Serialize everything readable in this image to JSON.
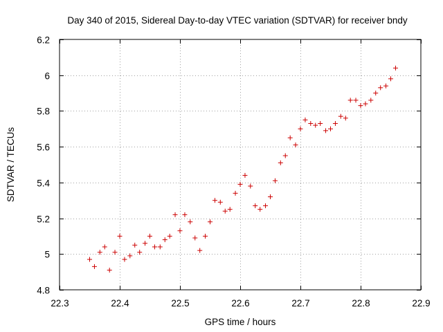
{
  "chart_data": {
    "type": "scatter",
    "title": "Day 340 of 2015, Sidereal Day-to-day VTEC variation (SDTVAR) for receiver bndy",
    "xlabel": "GPS time / hours",
    "ylabel": "SDTVAR / TECUs",
    "xlim": [
      22.3,
      22.9
    ],
    "ylim": [
      4.8,
      6.2
    ],
    "xticks": [
      "22.3",
      "22.4",
      "22.5",
      "22.6",
      "22.7",
      "22.8",
      "22.9"
    ],
    "yticks": [
      "4.8",
      "5",
      "5.2",
      "5.4",
      "5.6",
      "5.8",
      "6",
      "6.2"
    ],
    "grid": true,
    "marker": "+",
    "color": "#cc0000",
    "series": [
      {
        "name": "SDTVAR",
        "x": [
          22.35,
          22.358,
          22.367,
          22.375,
          22.383,
          22.392,
          22.4,
          22.408,
          22.417,
          22.425,
          22.433,
          22.442,
          22.45,
          22.458,
          22.467,
          22.475,
          22.483,
          22.492,
          22.5,
          22.508,
          22.517,
          22.525,
          22.533,
          22.542,
          22.55,
          22.558,
          22.567,
          22.575,
          22.583,
          22.592,
          22.6,
          22.608,
          22.617,
          22.625,
          22.633,
          22.642,
          22.65,
          22.658,
          22.667,
          22.675,
          22.683,
          22.692,
          22.7,
          22.708,
          22.717,
          22.725,
          22.733,
          22.742,
          22.75,
          22.758,
          22.767,
          22.775,
          22.783,
          22.792,
          22.8,
          22.808,
          22.817,
          22.825,
          22.833,
          22.842,
          22.85,
          22.858
        ],
        "y": [
          4.97,
          4.93,
          5.01,
          5.04,
          4.91,
          5.01,
          5.1,
          4.97,
          4.99,
          5.05,
          5.01,
          5.06,
          5.1,
          5.04,
          5.04,
          5.08,
          5.1,
          5.22,
          5.13,
          5.22,
          5.18,
          5.09,
          5.02,
          5.1,
          5.18,
          5.3,
          5.29,
          5.24,
          5.25,
          5.34,
          5.39,
          5.44,
          5.38,
          5.27,
          5.25,
          5.27,
          5.32,
          5.41,
          5.51,
          5.55,
          5.65,
          5.61,
          5.7,
          5.75,
          5.73,
          5.72,
          5.73,
          5.69,
          5.7,
          5.73,
          5.77,
          5.76,
          5.86,
          5.86,
          5.83,
          5.84,
          5.86,
          5.9,
          5.93,
          5.94,
          5.98,
          6.04
        ]
      }
    ]
  }
}
